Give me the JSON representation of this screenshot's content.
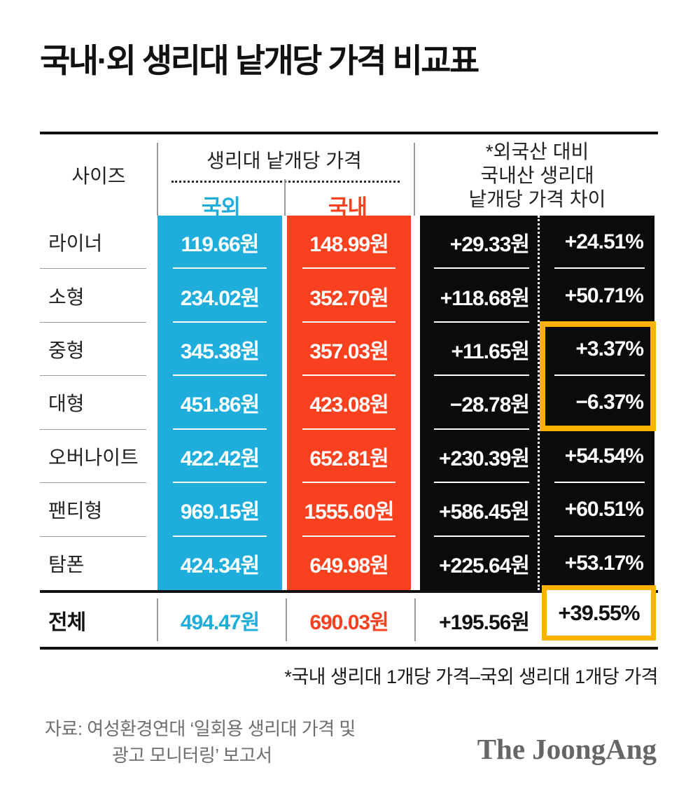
{
  "title": "국내·외 생리대 낱개당 가격 비교표",
  "colors": {
    "foreign_blue": "#1FAEDB",
    "domestic_red": "#F94120",
    "diff_black": "#0b0b0b",
    "highlight_orange": "#F9B200",
    "source_gray": "#6e6e6e"
  },
  "table": {
    "header": {
      "size_col": "사이즈",
      "price_group": "생리대 낱개당 가격",
      "foreign": "국외",
      "domestic": "국내",
      "diff_line1": "*외국산 대비",
      "diff_line2": "국내산 생리대",
      "diff_line3": "낱개당 가격 차이"
    },
    "rows": [
      {
        "size": "라이너",
        "foreign": "119.66원",
        "domestic": "148.99원",
        "diff_won": "+29.33원",
        "diff_pct": "+24.51%"
      },
      {
        "size": "소형",
        "foreign": "234.02원",
        "domestic": "352.70원",
        "diff_won": "+118.68원",
        "diff_pct": "+50.71%"
      },
      {
        "size": "중형",
        "foreign": "345.38원",
        "domestic": "357.03원",
        "diff_won": "+11.65원",
        "diff_pct": "+3.37%"
      },
      {
        "size": "대형",
        "foreign": "451.86원",
        "domestic": "423.08원",
        "diff_won": "−28.78원",
        "diff_pct": "−6.37%"
      },
      {
        "size": "오버나이트",
        "foreign": "422.42원",
        "domestic": "652.81원",
        "diff_won": "+230.39원",
        "diff_pct": "+54.54%"
      },
      {
        "size": "팬티형",
        "foreign": "969.15원",
        "domestic": "1555.60원",
        "diff_won": "+586.45원",
        "diff_pct": "+60.51%"
      },
      {
        "size": "탐폰",
        "foreign": "424.34원",
        "domestic": "649.98원",
        "diff_won": "+225.64원",
        "diff_pct": "+53.17%"
      }
    ],
    "total": {
      "size": "전체",
      "foreign": "494.47원",
      "domestic": "690.03원",
      "diff_won": "+195.56원",
      "diff_pct": "+39.55%"
    }
  },
  "footnote": "*국내 생리대 1개당 가격–국외 생리대 1개당 가격",
  "source": {
    "line1": "자료: 여성환경연대 ‘일회용 생리대 가격 및",
    "line2": "광고 모니터링’ 보고서"
  },
  "logo": "The JoongAng",
  "chart_data": {
    "type": "table",
    "title": "국내·외 생리대 낱개당 가격 비교표",
    "columns": [
      "사이즈",
      "국외 낱개당 가격(원)",
      "국내 낱개당 가격(원)",
      "가격 차이(원)",
      "가격 차이(%)"
    ],
    "categories": [
      "라이너",
      "소형",
      "중형",
      "대형",
      "오버나이트",
      "팬티형",
      "탐폰",
      "전체"
    ],
    "series": [
      {
        "name": "국외 생리대 낱개당 가격(원)",
        "values": [
          119.66,
          234.02,
          345.38,
          451.86,
          422.42,
          969.15,
          424.34,
          494.47
        ]
      },
      {
        "name": "국내 생리대 낱개당 가격(원)",
        "values": [
          148.99,
          352.7,
          357.03,
          423.08,
          652.81,
          1555.6,
          649.98,
          690.03
        ]
      },
      {
        "name": "외국산 대비 국내산 가격 차이(원)",
        "values": [
          29.33,
          118.68,
          11.65,
          -28.78,
          230.39,
          586.45,
          225.64,
          195.56
        ]
      },
      {
        "name": "외국산 대비 국내산 가격 차이(%)",
        "values": [
          24.51,
          50.71,
          3.37,
          -6.37,
          54.54,
          60.51,
          53.17,
          39.55
        ]
      }
    ],
    "annotations": [
      "중형/대형 % 차이 및 전체 +39.55% 주황색 강조 박스"
    ]
  }
}
